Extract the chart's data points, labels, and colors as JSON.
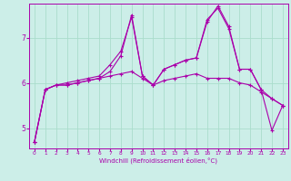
{
  "xlabel": "Windchill (Refroidissement éolien,°C)",
  "ylabel": "",
  "bg_color": "#cceee8",
  "grid_color": "#aaddcc",
  "line_color": "#aa00aa",
  "marker": "+",
  "xlim": [
    -0.5,
    23.5
  ],
  "ylim": [
    4.55,
    7.75
  ],
  "xticks": [
    0,
    1,
    2,
    3,
    4,
    5,
    6,
    7,
    8,
    9,
    10,
    11,
    12,
    13,
    14,
    15,
    16,
    17,
    18,
    19,
    20,
    21,
    22,
    23
  ],
  "yticks": [
    5,
    6,
    7
  ],
  "line1_x": [
    0,
    1,
    2,
    3,
    4,
    5,
    6,
    7,
    8,
    9,
    10,
    11,
    12,
    13,
    14,
    15,
    16,
    17,
    18,
    19,
    20,
    21,
    22,
    23
  ],
  "line1_y": [
    4.7,
    5.85,
    5.95,
    5.95,
    6.0,
    6.05,
    6.1,
    6.15,
    6.2,
    6.25,
    6.1,
    5.95,
    6.05,
    6.1,
    6.15,
    6.2,
    6.1,
    6.1,
    6.1,
    6.0,
    5.95,
    5.8,
    5.65,
    5.5
  ],
  "line2_x": [
    0,
    1,
    2,
    3,
    4,
    5,
    6,
    7,
    8,
    9,
    10,
    11,
    12,
    13,
    14,
    15,
    16,
    17,
    18,
    19,
    20,
    21,
    22,
    23
  ],
  "line2_y": [
    4.7,
    5.85,
    5.95,
    6.0,
    6.05,
    6.1,
    6.15,
    6.4,
    6.7,
    7.45,
    6.15,
    5.95,
    6.3,
    6.4,
    6.5,
    6.55,
    7.4,
    7.65,
    7.2,
    6.3,
    6.3,
    5.85,
    5.65,
    5.5
  ],
  "line3_x": [
    0,
    1,
    2,
    3,
    4,
    5,
    6,
    7,
    8,
    9,
    10,
    11,
    12,
    13,
    14,
    15,
    16,
    17,
    18,
    19,
    20,
    21,
    22,
    23
  ],
  "line3_y": [
    4.7,
    5.85,
    5.95,
    5.95,
    6.0,
    6.05,
    6.1,
    6.25,
    6.6,
    7.5,
    6.15,
    5.95,
    6.3,
    6.4,
    6.5,
    6.55,
    7.35,
    7.7,
    7.25,
    6.3,
    6.3,
    5.85,
    4.95,
    5.5
  ]
}
